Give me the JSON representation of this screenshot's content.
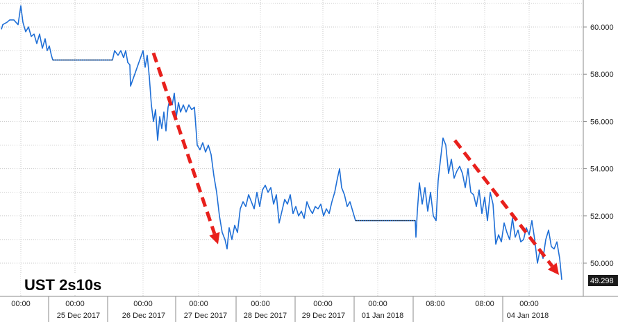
{
  "chart_data": {
    "type": "line",
    "title": "UST 2s10s",
    "ylim": [
      49,
      61
    ],
    "y_ticks": [
      "60.000",
      "58.000",
      "56.000",
      "54.000",
      "52.000",
      "50.000"
    ],
    "last_value_label": "49.298",
    "x_time_labels": [
      "00:00",
      "00:00",
      "00:00",
      "00:00",
      "00:00",
      "00:00",
      "00:00",
      "08:00",
      "08:00",
      "00:00"
    ],
    "x_date_labels": [
      "25 Dec 2017",
      "26 Dec 2017",
      "27 Dec 2017",
      "28 Dec 2017",
      "29 Dec 2017",
      "01 Jan 2018",
      "04 Jan 2018"
    ],
    "series": [
      {
        "color": "#1f6fd6",
        "points": [
          [
            0,
            59.9
          ],
          [
            2,
            60.1
          ],
          [
            8,
            60.2
          ],
          [
            12,
            60.3
          ],
          [
            18,
            60.3
          ],
          [
            24,
            60.1
          ],
          [
            28,
            60.9
          ],
          [
            31,
            60.2
          ],
          [
            35,
            59.8
          ],
          [
            39,
            60.0
          ],
          [
            43,
            59.6
          ],
          [
            47,
            59.7
          ],
          [
            51,
            59.3
          ],
          [
            55,
            59.7
          ],
          [
            59,
            59.1
          ],
          [
            63,
            59.5
          ],
          [
            66,
            59.0
          ],
          [
            69,
            59.2
          ],
          [
            72,
            58.8
          ],
          [
            74,
            58.6
          ],
          [
            160,
            58.6
          ],
          [
            163,
            59.0
          ],
          [
            168,
            58.8
          ],
          [
            172,
            59.0
          ],
          [
            176,
            58.7
          ],
          [
            179,
            59.0
          ],
          [
            182,
            58.5
          ],
          [
            185,
            58.4
          ],
          [
            186,
            57.5
          ],
          [
            204,
            59.0
          ],
          [
            207,
            58.3
          ],
          [
            210,
            58.8
          ],
          [
            213,
            57.9
          ],
          [
            216,
            56.7
          ],
          [
            219,
            56.0
          ],
          [
            222,
            56.5
          ],
          [
            225,
            55.2
          ],
          [
            228,
            56.2
          ],
          [
            231,
            55.7
          ],
          [
            234,
            56.4
          ],
          [
            237,
            55.6
          ],
          [
            240,
            56.6
          ],
          [
            243,
            57.0
          ],
          [
            246,
            56.7
          ],
          [
            249,
            57.2
          ],
          [
            252,
            56.2
          ],
          [
            255,
            56.8
          ],
          [
            258,
            56.4
          ],
          [
            262,
            56.7
          ],
          [
            266,
            56.4
          ],
          [
            270,
            56.7
          ],
          [
            274,
            56.5
          ],
          [
            278,
            56.6
          ],
          [
            282,
            55.0
          ],
          [
            286,
            54.8
          ],
          [
            290,
            55.1
          ],
          [
            294,
            54.7
          ],
          [
            298,
            55.0
          ],
          [
            302,
            54.6
          ],
          [
            306,
            53.7
          ],
          [
            310,
            53.0
          ],
          [
            314,
            52.0
          ],
          [
            318,
            51.3
          ],
          [
            322,
            51.0
          ],
          [
            325,
            50.6
          ],
          [
            328,
            51.5
          ],
          [
            332,
            51.0
          ],
          [
            336,
            51.6
          ],
          [
            340,
            51.3
          ],
          [
            344,
            52.3
          ],
          [
            348,
            52.6
          ],
          [
            352,
            52.4
          ],
          [
            356,
            52.9
          ],
          [
            360,
            52.6
          ],
          [
            364,
            52.3
          ],
          [
            368,
            53.0
          ],
          [
            372,
            52.4
          ],
          [
            376,
            53.1
          ],
          [
            380,
            53.3
          ],
          [
            384,
            53.0
          ],
          [
            388,
            53.2
          ],
          [
            392,
            52.5
          ],
          [
            396,
            52.9
          ],
          [
            400,
            51.7
          ],
          [
            404,
            52.2
          ],
          [
            408,
            52.7
          ],
          [
            412,
            52.5
          ],
          [
            416,
            52.9
          ],
          [
            420,
            52.1
          ],
          [
            424,
            52.4
          ],
          [
            428,
            52.0
          ],
          [
            432,
            52.2
          ],
          [
            436,
            51.9
          ],
          [
            440,
            52.6
          ],
          [
            444,
            52.3
          ],
          [
            448,
            52.1
          ],
          [
            452,
            52.4
          ],
          [
            456,
            52.3
          ],
          [
            460,
            52.5
          ],
          [
            464,
            52.0
          ],
          [
            468,
            52.3
          ],
          [
            472,
            52.1
          ],
          [
            476,
            52.6
          ],
          [
            480,
            53.0
          ],
          [
            484,
            53.6
          ],
          [
            487,
            54.0
          ],
          [
            490,
            53.2
          ],
          [
            494,
            52.9
          ],
          [
            498,
            52.4
          ],
          [
            502,
            52.6
          ],
          [
            506,
            52.2
          ],
          [
            510,
            51.8
          ],
          [
            596,
            51.8
          ],
          [
            597,
            51.1
          ],
          [
            599,
            52.2
          ],
          [
            602,
            53.4
          ],
          [
            606,
            52.5
          ],
          [
            610,
            53.2
          ],
          [
            614,
            52.2
          ],
          [
            618,
            53.0
          ],
          [
            622,
            52.0
          ],
          [
            626,
            51.8
          ],
          [
            629,
            53.5
          ],
          [
            632,
            54.3
          ],
          [
            636,
            55.3
          ],
          [
            640,
            55.0
          ],
          [
            644,
            53.8
          ],
          [
            648,
            54.4
          ],
          [
            652,
            53.6
          ],
          [
            656,
            53.9
          ],
          [
            660,
            54.1
          ],
          [
            664,
            53.8
          ],
          [
            668,
            53.2
          ],
          [
            672,
            54.0
          ],
          [
            676,
            53.0
          ],
          [
            680,
            52.9
          ],
          [
            684,
            52.4
          ],
          [
            688,
            53.1
          ],
          [
            692,
            52.1
          ],
          [
            696,
            52.8
          ],
          [
            700,
            51.8
          ],
          [
            704,
            53.0
          ],
          [
            708,
            52.5
          ],
          [
            712,
            50.8
          ],
          [
            716,
            51.2
          ],
          [
            720,
            50.9
          ],
          [
            724,
            51.7
          ],
          [
            728,
            51.3
          ],
          [
            732,
            51.0
          ],
          [
            736,
            51.9
          ],
          [
            740,
            51.1
          ],
          [
            744,
            51.4
          ],
          [
            748,
            50.9
          ],
          [
            752,
            51.0
          ],
          [
            756,
            51.5
          ],
          [
            760,
            51.2
          ],
          [
            764,
            51.8
          ],
          [
            768,
            51.0
          ],
          [
            772,
            50.0
          ],
          [
            776,
            50.6
          ],
          [
            780,
            50.2
          ],
          [
            784,
            51.0
          ],
          [
            788,
            51.4
          ],
          [
            792,
            50.7
          ],
          [
            796,
            50.6
          ],
          [
            800,
            50.9
          ],
          [
            804,
            50.2
          ],
          [
            807,
            49.3
          ]
        ]
      }
    ],
    "annotations": [
      {
        "type": "arrow",
        "color": "#e8201c",
        "from": [
          221,
          58.9
        ],
        "to": [
          314,
          50.8
        ]
      },
      {
        "type": "arrow",
        "color": "#e8201c",
        "from": [
          655,
          55.2
        ],
        "to": [
          805,
          49.5
        ]
      }
    ]
  }
}
